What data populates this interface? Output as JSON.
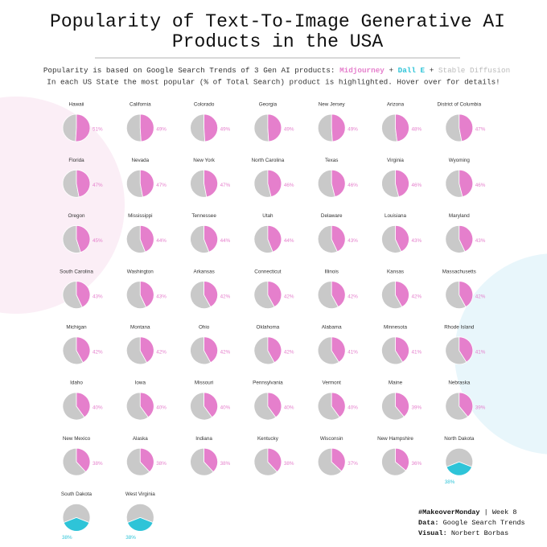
{
  "chart_data": {
    "type": "pie",
    "title": [
      "Popularity of Text-To-Image Generative AI",
      "Products in the USA"
    ],
    "subtitle_lead": "Popularity is based on Google Search Trends of 3 Gen AI products:",
    "subtitle_join": "+",
    "note": "In each US State the most popular (% of Total Search) product is highlighted. Hover over for details!",
    "products": [
      {
        "name": "Midjourney",
        "color": "#e57fcc"
      },
      {
        "name": "Dall E",
        "color": "#2ec4d8"
      },
      {
        "name": "Stable Diffusion",
        "color": "#c9c9c9"
      }
    ],
    "categories": [
      "Hawaii",
      "California",
      "Colorado",
      "Georgia",
      "New Jersey",
      "Arizona",
      "District of Columbia",
      "Florida",
      "Nevada",
      "New York",
      "North Carolina",
      "Texas",
      "Virginia",
      "Wyoming",
      "Oregon",
      "Mississippi",
      "Tennessee",
      "Utah",
      "Delaware",
      "Louisiana",
      "Maryland",
      "South Carolina",
      "Washington",
      "Arkansas",
      "Connecticut",
      "Illinois",
      "Kansas",
      "Massachusetts",
      "Michigan",
      "Montana",
      "Ohio",
      "Oklahoma",
      "Alabama",
      "Minnesota",
      "Rhode Island",
      "Idaho",
      "Iowa",
      "Missouri",
      "Pennsylvania",
      "Vermont",
      "Maine",
      "Nebraska",
      "New Mexico",
      "Alaska",
      "Indiana",
      "Kentucky",
      "Wisconsin",
      "New Hampshire",
      "North Dakota",
      "South Dakota",
      "West Virginia"
    ],
    "values": [
      51,
      49,
      49,
      49,
      49,
      48,
      47,
      47,
      47,
      47,
      46,
      46,
      46,
      46,
      45,
      44,
      44,
      44,
      43,
      43,
      43,
      43,
      43,
      42,
      42,
      42,
      42,
      42,
      42,
      42,
      42,
      42,
      41,
      41,
      41,
      40,
      40,
      40,
      40,
      40,
      39,
      39,
      38,
      38,
      38,
      38,
      37,
      36,
      38,
      38,
      38
    ],
    "value_labels": [
      "51%",
      "49%",
      "49%",
      "49%",
      "49%",
      "48%",
      "47%",
      "47%",
      "47%",
      "47%",
      "46%",
      "46%",
      "46%",
      "46%",
      "45%",
      "44%",
      "44%",
      "44%",
      "43%",
      "43%",
      "43%",
      "43%",
      "43%",
      "42%",
      "42%",
      "42%",
      "42%",
      "42%",
      "42%",
      "42%",
      "42%",
      "42%",
      "41%",
      "41%",
      "41%",
      "40%",
      "40%",
      "40%",
      "40%",
      "40%",
      "39%",
      "39%",
      "38%",
      "38%",
      "38%",
      "38%",
      "37%",
      "36%",
      "38%",
      "38%",
      "38%"
    ],
    "leader": [
      "Midjourney",
      "Midjourney",
      "Midjourney",
      "Midjourney",
      "Midjourney",
      "Midjourney",
      "Midjourney",
      "Midjourney",
      "Midjourney",
      "Midjourney",
      "Midjourney",
      "Midjourney",
      "Midjourney",
      "Midjourney",
      "Midjourney",
      "Midjourney",
      "Midjourney",
      "Midjourney",
      "Midjourney",
      "Midjourney",
      "Midjourney",
      "Midjourney",
      "Midjourney",
      "Midjourney",
      "Midjourney",
      "Midjourney",
      "Midjourney",
      "Midjourney",
      "Midjourney",
      "Midjourney",
      "Midjourney",
      "Midjourney",
      "Midjourney",
      "Midjourney",
      "Midjourney",
      "Midjourney",
      "Midjourney",
      "Midjourney",
      "Midjourney",
      "Midjourney",
      "Midjourney",
      "Midjourney",
      "Midjourney",
      "Midjourney",
      "Midjourney",
      "Midjourney",
      "Midjourney",
      "Midjourney",
      "Dall E",
      "Dall E",
      "Dall E"
    ],
    "footer": {
      "hashtag": "#MakeoverMonday",
      "week": "| Week 8",
      "data_label": "Data:",
      "data": "Google Search Trends",
      "visual_label": "Visual:",
      "visual": "Norbert Borbas"
    }
  }
}
